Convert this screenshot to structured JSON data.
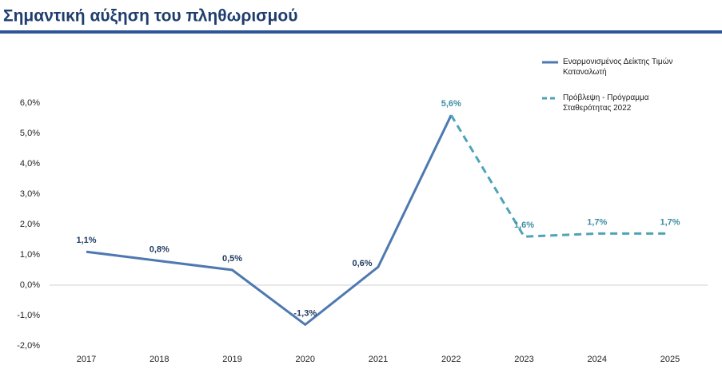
{
  "chart_data": {
    "type": "line",
    "title": "Σημαντική αύξηση του πληθωρισμού",
    "categories": [
      "2017",
      "2018",
      "2019",
      "2020",
      "2021",
      "2022",
      "2023",
      "2024",
      "2025"
    ],
    "series": [
      {
        "name": "Εναρμονισμένος Δείκτης Τιμών Καταναλωτή",
        "color": "#4e79b0",
        "dashed": false,
        "values": [
          1.1,
          0.8,
          0.5,
          -1.3,
          0.6,
          5.6,
          null,
          null,
          null
        ],
        "value_labels": [
          "1,1%",
          "0,8%",
          "0,5%",
          "-1,3%",
          "0,6%",
          null,
          null,
          null,
          null
        ]
      },
      {
        "name": "Πρόβλεψη - Πρόγραμμα Σταθερότητας 2022",
        "color": "#4fa3b9",
        "dashed": true,
        "values": [
          null,
          null,
          null,
          null,
          null,
          5.6,
          1.6,
          1.7,
          1.7
        ],
        "value_labels": [
          null,
          null,
          null,
          null,
          null,
          "5,6%",
          "1,6%",
          "1,7%",
          "1,7%"
        ]
      }
    ],
    "ylim": [
      -2,
      6
    ],
    "yticks": [
      {
        "value": -2,
        "label": "-2,0%"
      },
      {
        "value": -1,
        "label": "-1,0%"
      },
      {
        "value": 0,
        "label": "0,0%"
      },
      {
        "value": 1,
        "label": "1,0%"
      },
      {
        "value": 2,
        "label": "2,0%"
      },
      {
        "value": 3,
        "label": "3,0%"
      },
      {
        "value": 4,
        "label": "4,0%"
      },
      {
        "value": 5,
        "label": "5,0%"
      },
      {
        "value": 6,
        "label": "6,0%"
      }
    ],
    "legend": "top-right"
  }
}
